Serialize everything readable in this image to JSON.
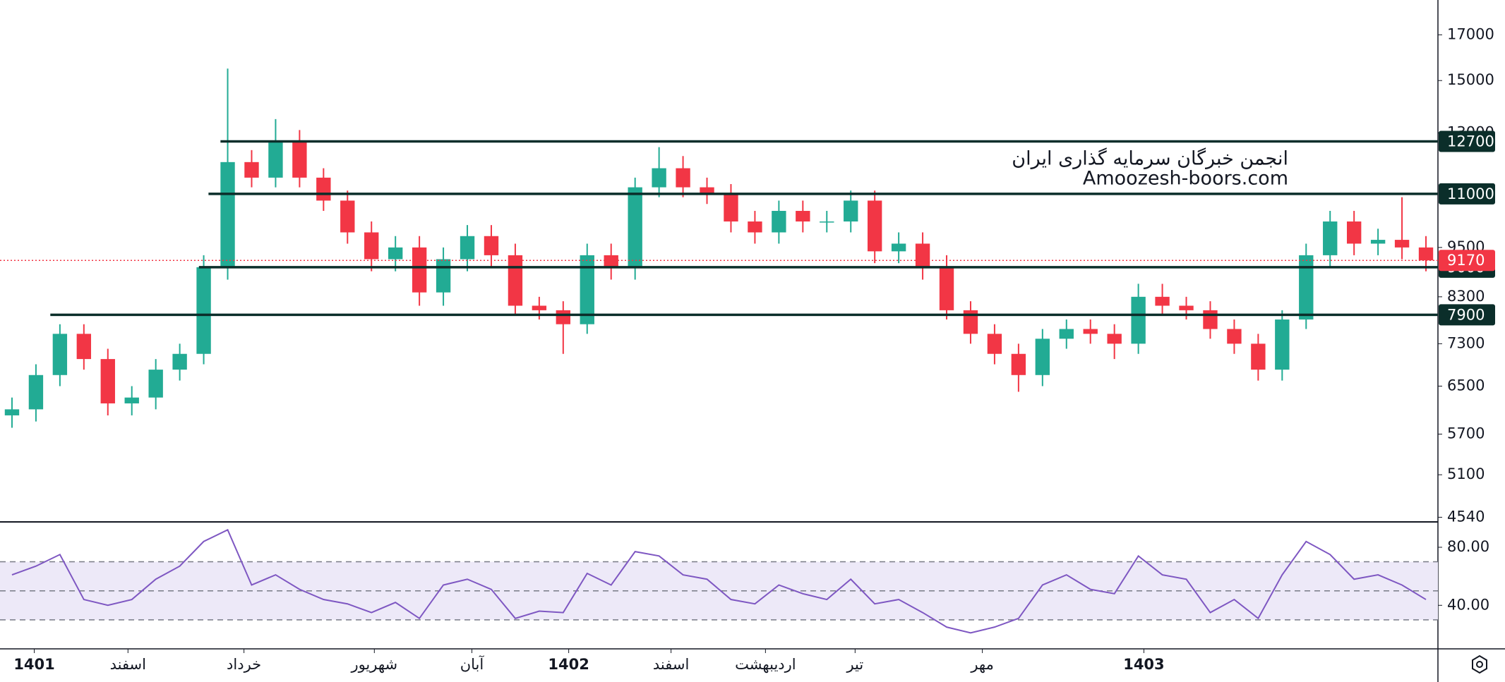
{
  "chart_data": [
    {
      "type": "candlestick",
      "watermark": [
        "انجمن خبرگان سرمایه گذاری ایران",
        "Amoozesh-boors.com"
      ],
      "xlim": [
        0,
        60
      ],
      "xticks": [
        {
          "value": 1.43,
          "label": "1401"
        },
        {
          "value": 5.34,
          "label": "اسفند"
        },
        {
          "value": 10.18,
          "label": "خرداد"
        },
        {
          "value": 15.62,
          "label": "شهریور"
        },
        {
          "value": 19.69,
          "label": "آبان"
        },
        {
          "value": 23.73,
          "label": "1402"
        },
        {
          "value": 28.0,
          "label": "اسفند"
        },
        {
          "value": 31.94,
          "label": "اردیبهشت"
        },
        {
          "value": 35.68,
          "label": "تیر"
        },
        {
          "value": 40.99,
          "label": "مهر"
        },
        {
          "value": 47.73,
          "label": "1403"
        }
      ],
      "ylim": [
        4500,
        18700
      ],
      "log_scale": true,
      "yticks": [
        17000,
        15000,
        13000,
        9500,
        8300,
        7300,
        6500,
        5700,
        5100,
        4540
      ],
      "up_color": "#22ab94",
      "down_color": "#f23645",
      "open": [
        6000,
        6100,
        6700,
        7500,
        7000,
        6200,
        6300,
        6800,
        7100,
        9000,
        12000,
        11500,
        12700,
        11500,
        10800,
        9900,
        9200,
        9500,
        8400,
        9200,
        9800,
        9300,
        8100,
        8000,
        7700,
        9300,
        9000,
        11200,
        11800,
        11200,
        11000,
        10200,
        9900,
        10500,
        10200,
        10200,
        10800,
        9400,
        9600,
        9000,
        8000,
        7500,
        7100,
        6700,
        7400,
        7600,
        7500,
        7300,
        8300,
        8100,
        8000,
        7600,
        7300,
        6800,
        7800,
        9300,
        10200,
        9600,
        9700,
        9500
      ],
      "high": [
        6300,
        6900,
        7700,
        7700,
        7200,
        6500,
        7000,
        7300,
        9300,
        15500,
        12400,
        13500,
        13100,
        11800,
        11100,
        10200,
        9800,
        9800,
        9500,
        10100,
        10100,
        9600,
        8300,
        8200,
        9600,
        9600,
        11500,
        12500,
        12200,
        11500,
        11300,
        10500,
        10800,
        10800,
        10500,
        11100,
        11100,
        9900,
        9900,
        9300,
        8200,
        7700,
        7300,
        7600,
        7800,
        7800,
        7700,
        8600,
        8600,
        8300,
        8200,
        7800,
        7500,
        8000,
        9600,
        10500,
        10500,
        10000,
        10900,
        9800
      ],
      "low": [
        5800,
        5900,
        6500,
        6800,
        6000,
        6000,
        6100,
        6600,
        6900,
        8700,
        11200,
        11200,
        11200,
        10500,
        9600,
        8900,
        8900,
        8100,
        8100,
        8900,
        9000,
        7900,
        7800,
        7100,
        7500,
        8700,
        8700,
        10900,
        10900,
        10700,
        9900,
        9600,
        9600,
        9900,
        9900,
        9900,
        9100,
        9100,
        8700,
        7800,
        7300,
        6900,
        6400,
        6500,
        7200,
        7300,
        7000,
        7100,
        7900,
        7800,
        7400,
        7100,
        6600,
        6600,
        7600,
        9000,
        9300,
        9300,
        9200,
        8900
      ],
      "close": [
        6100,
        6700,
        7500,
        7000,
        6200,
        6300,
        6800,
        7100,
        9000,
        12000,
        11500,
        12700,
        11500,
        10800,
        9900,
        9200,
        9500,
        8400,
        9200,
        9800,
        9300,
        8100,
        8000,
        7700,
        9300,
        9000,
        11200,
        11800,
        11200,
        11000,
        10200,
        9900,
        10500,
        10200,
        10200,
        10800,
        9400,
        9600,
        9000,
        8000,
        7500,
        7100,
        6700,
        7400,
        7600,
        7500,
        7300,
        8300,
        8100,
        8000,
        7600,
        7300,
        6800,
        7800,
        9300,
        10200,
        9600,
        9700,
        9500,
        9170
      ],
      "levels": [
        {
          "value": 12700,
          "x_start": 9.2
        },
        {
          "value": 11000,
          "x_start": 8.7
        },
        {
          "value": 9000,
          "x_start": 8.3
        },
        {
          "value": 7900,
          "x_start": 2.1
        }
      ],
      "level_color": "#0b2e2a",
      "last_price": 9170,
      "last_price_color": "#f23645"
    },
    {
      "type": "line",
      "ylim": [
        10,
        97
      ],
      "yticks": [
        {
          "value": 80,
          "label": "80.00"
        },
        {
          "value": 40,
          "label": "40.00"
        }
      ],
      "band": [
        30,
        70
      ],
      "band_color": "#ede9f8",
      "dashed_lines": [
        70,
        50,
        30
      ],
      "color": "#7e57c2",
      "values": [
        61,
        67,
        75,
        44,
        40,
        44,
        58,
        67,
        84,
        92,
        54,
        61,
        51,
        44,
        41,
        35,
        42,
        31,
        54,
        58,
        51,
        31,
        36,
        35,
        62,
        54,
        77,
        74,
        61,
        58,
        44,
        41,
        54,
        48,
        44,
        58,
        41,
        44,
        35,
        25,
        21,
        25,
        31,
        54,
        61,
        51,
        48,
        74,
        61,
        58,
        35,
        44,
        31,
        61,
        84,
        75,
        58,
        61,
        54,
        44
      ]
    }
  ]
}
